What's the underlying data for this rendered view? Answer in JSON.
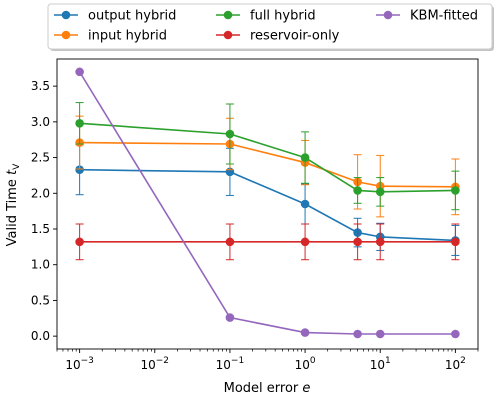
{
  "chart_data": {
    "type": "line",
    "xlabel": "Model error ",
    "xlabel_symbol": "e",
    "ylabel": "Valid Time ",
    "ylabel_symbol": "t",
    "ylabel_subscript": "V",
    "x_scale": "log",
    "xlim": [
      0.0005,
      200
    ],
    "ylim": [
      -0.18,
      3.88
    ],
    "x": [
      0.001,
      0.1,
      1,
      5,
      10,
      100
    ],
    "x_tick_values": [
      0.001,
      0.01,
      0.1,
      1,
      10,
      100
    ],
    "x_ticks": [
      {
        "base": "10",
        "exp": "−3"
      },
      {
        "base": "10",
        "exp": "−2"
      },
      {
        "base": "10",
        "exp": "−1"
      },
      {
        "base": "10",
        "exp": "0"
      },
      {
        "base": "10",
        "exp": "1"
      },
      {
        "base": "10",
        "exp": "2"
      }
    ],
    "y_tick_values": [
      0.0,
      0.5,
      1.0,
      1.5,
      2.0,
      2.5,
      3.0,
      3.5
    ],
    "y_ticks": [
      "0.0",
      "0.5",
      "1.0",
      "1.5",
      "2.0",
      "2.5",
      "3.0",
      "3.5"
    ],
    "grid": false,
    "legend_position": "top-center, above plot",
    "series": [
      {
        "name": "output hybrid",
        "color": "#1f77b4",
        "values": [
          2.33,
          2.3,
          1.85,
          1.45,
          1.39,
          1.34
        ],
        "err": [
          0.35,
          0.33,
          0.28,
          0.2,
          0.19,
          0.21
        ],
        "error_bars": true
      },
      {
        "name": "input hybrid",
        "color": "#ff7f0e",
        "values": [
          2.71,
          2.69,
          2.43,
          2.16,
          2.1,
          2.09
        ],
        "err": [
          0.37,
          0.36,
          0.31,
          0.38,
          0.43,
          0.39
        ],
        "error_bars": true
      },
      {
        "name": "full hybrid",
        "color": "#2ca02c",
        "values": [
          2.98,
          2.83,
          2.5,
          2.04,
          2.02,
          2.04
        ],
        "err": [
          0.29,
          0.42,
          0.36,
          0.18,
          0.2,
          0.27
        ],
        "error_bars": true
      },
      {
        "name": "reservoir-only",
        "color": "#d62728",
        "values": [
          1.32,
          1.32,
          1.32,
          1.32,
          1.32,
          1.32
        ],
        "err": [
          0.25,
          0.25,
          0.25,
          0.25,
          0.25,
          0.25
        ],
        "error_bars": true
      },
      {
        "name": "KBM-fitted",
        "color": "#9467bd",
        "values": [
          3.7,
          0.26,
          0.05,
          0.03,
          0.03,
          0.03
        ],
        "err": null,
        "error_bars": false
      }
    ]
  }
}
